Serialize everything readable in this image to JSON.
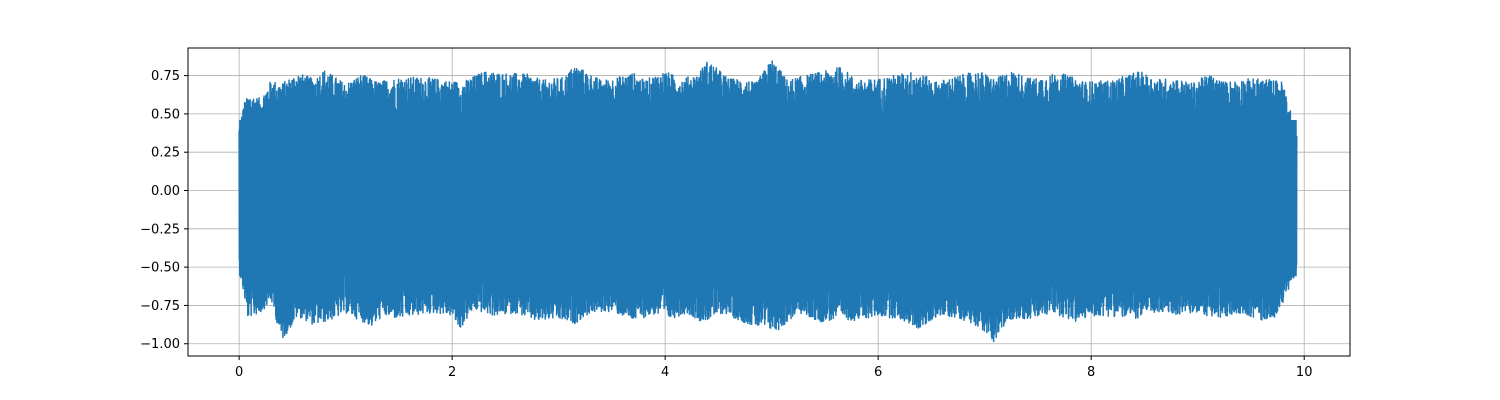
{
  "chart_data": {
    "type": "line",
    "title": "",
    "xlabel": "",
    "ylabel": "",
    "xlim": [
      -0.48,
      10.43
    ],
    "ylim": [
      -1.08,
      0.93
    ],
    "grid": true,
    "line_color": "#1f77b4",
    "x_ticks": [
      0,
      2,
      4,
      6,
      8,
      10
    ],
    "x_tick_labels": [
      "0",
      "2",
      "4",
      "6",
      "8",
      "10"
    ],
    "y_ticks": [
      -1.0,
      -0.75,
      -0.5,
      -0.25,
      0.0,
      0.25,
      0.5,
      0.75
    ],
    "y_tick_labels": [
      "−1.00",
      "−0.75",
      "−0.50",
      "−0.25",
      "0.00",
      "0.25",
      "0.50",
      "0.75"
    ],
    "series": [
      {
        "description_free": true,
        "x_range": [
          0,
          9.93
        ],
        "envelope_upper": [
          [
            0.0,
            0.42
          ],
          [
            0.05,
            0.58
          ],
          [
            0.1,
            0.63
          ],
          [
            0.2,
            0.6
          ],
          [
            0.3,
            0.72
          ],
          [
            0.4,
            0.7
          ],
          [
            0.55,
            0.77
          ],
          [
            0.7,
            0.73
          ],
          [
            0.8,
            0.79
          ],
          [
            0.95,
            0.72
          ],
          [
            1.0,
            0.7
          ],
          [
            1.15,
            0.76
          ],
          [
            1.3,
            0.71
          ],
          [
            1.5,
            0.74
          ],
          [
            1.75,
            0.74
          ],
          [
            1.95,
            0.72
          ],
          [
            2.1,
            0.71
          ],
          [
            2.3,
            0.78
          ],
          [
            2.45,
            0.77
          ],
          [
            2.7,
            0.76
          ],
          [
            2.85,
            0.72
          ],
          [
            3.05,
            0.74
          ],
          [
            3.15,
            0.82
          ],
          [
            3.4,
            0.72
          ],
          [
            3.55,
            0.74
          ],
          [
            3.7,
            0.77
          ],
          [
            3.8,
            0.72
          ],
          [
            4.0,
            0.78
          ],
          [
            4.15,
            0.73
          ],
          [
            4.3,
            0.76
          ],
          [
            4.4,
            0.85
          ],
          [
            4.6,
            0.73
          ],
          [
            4.75,
            0.73
          ],
          [
            4.85,
            0.7
          ],
          [
            5.0,
            0.86
          ],
          [
            5.15,
            0.72
          ],
          [
            5.3,
            0.75
          ],
          [
            5.5,
            0.78
          ],
          [
            5.65,
            0.81
          ],
          [
            5.8,
            0.72
          ],
          [
            6.0,
            0.73
          ],
          [
            6.2,
            0.76
          ],
          [
            6.35,
            0.78
          ],
          [
            6.55,
            0.71
          ],
          [
            6.75,
            0.75
          ],
          [
            6.95,
            0.78
          ],
          [
            7.1,
            0.73
          ],
          [
            7.25,
            0.78
          ],
          [
            7.45,
            0.73
          ],
          [
            7.7,
            0.77
          ],
          [
            7.95,
            0.71
          ],
          [
            8.2,
            0.72
          ],
          [
            8.45,
            0.78
          ],
          [
            8.6,
            0.73
          ],
          [
            8.8,
            0.73
          ],
          [
            8.95,
            0.7
          ],
          [
            9.1,
            0.76
          ],
          [
            9.25,
            0.71
          ],
          [
            9.45,
            0.73
          ],
          [
            9.65,
            0.73
          ],
          [
            9.8,
            0.71
          ],
          [
            9.93,
            0.36
          ]
        ],
        "envelope_lower": [
          [
            0.0,
            -0.52
          ],
          [
            0.05,
            -0.7
          ],
          [
            0.08,
            -0.83
          ],
          [
            0.2,
            -0.8
          ],
          [
            0.3,
            -0.72
          ],
          [
            0.4,
            -0.98
          ],
          [
            0.48,
            -0.9
          ],
          [
            0.55,
            -0.82
          ],
          [
            0.7,
            -0.88
          ],
          [
            0.85,
            -0.85
          ],
          [
            1.0,
            -0.8
          ],
          [
            1.25,
            -0.89
          ],
          [
            1.35,
            -0.82
          ],
          [
            1.5,
            -0.84
          ],
          [
            1.7,
            -0.81
          ],
          [
            1.85,
            -0.8
          ],
          [
            2.0,
            -0.82
          ],
          [
            2.07,
            -0.91
          ],
          [
            2.2,
            -0.78
          ],
          [
            2.4,
            -0.82
          ],
          [
            2.6,
            -0.8
          ],
          [
            2.8,
            -0.86
          ],
          [
            2.95,
            -0.84
          ],
          [
            3.15,
            -0.87
          ],
          [
            3.3,
            -0.8
          ],
          [
            3.5,
            -0.79
          ],
          [
            3.7,
            -0.85
          ],
          [
            3.9,
            -0.81
          ],
          [
            4.05,
            -0.84
          ],
          [
            4.2,
            -0.8
          ],
          [
            4.35,
            -0.86
          ],
          [
            4.55,
            -0.8
          ],
          [
            4.7,
            -0.85
          ],
          [
            4.85,
            -0.89
          ],
          [
            5.05,
            -0.92
          ],
          [
            5.25,
            -0.8
          ],
          [
            5.45,
            -0.86
          ],
          [
            5.65,
            -0.84
          ],
          [
            5.8,
            -0.85
          ],
          [
            6.0,
            -0.82
          ],
          [
            6.2,
            -0.84
          ],
          [
            6.4,
            -0.91
          ],
          [
            6.55,
            -0.82
          ],
          [
            6.75,
            -0.83
          ],
          [
            6.95,
            -0.89
          ],
          [
            7.08,
            -0.99
          ],
          [
            7.25,
            -0.84
          ],
          [
            7.45,
            -0.84
          ],
          [
            7.65,
            -0.8
          ],
          [
            7.85,
            -0.86
          ],
          [
            8.0,
            -0.82
          ],
          [
            8.2,
            -0.82
          ],
          [
            8.4,
            -0.84
          ],
          [
            8.6,
            -0.8
          ],
          [
            8.8,
            -0.81
          ],
          [
            9.0,
            -0.8
          ],
          [
            9.2,
            -0.84
          ],
          [
            9.4,
            -0.8
          ],
          [
            9.6,
            -0.85
          ],
          [
            9.75,
            -0.82
          ],
          [
            9.93,
            -0.52
          ]
        ]
      }
    ]
  }
}
